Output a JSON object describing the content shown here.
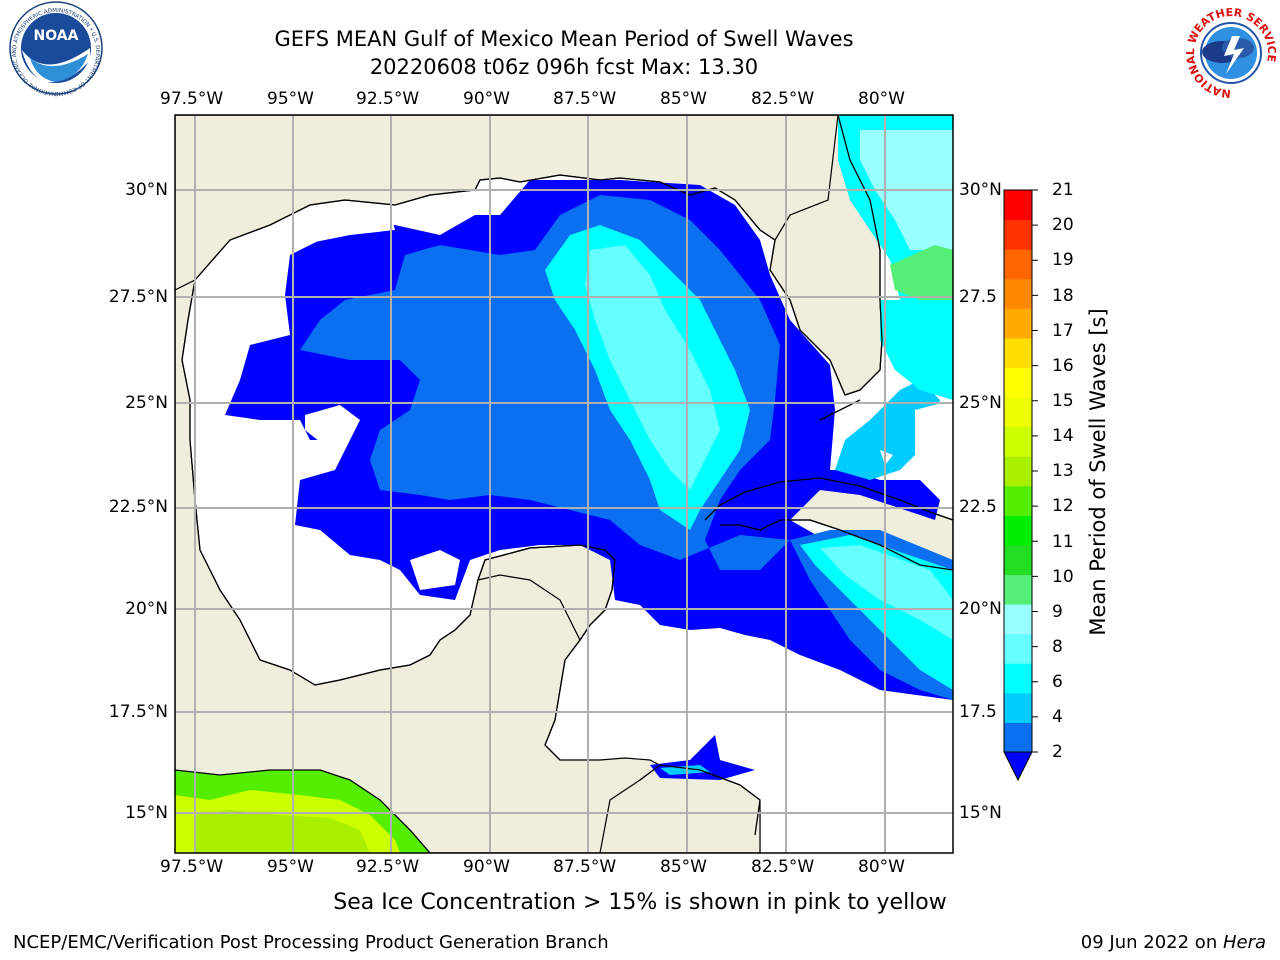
{
  "title": {
    "line1": "GEFS MEAN Gulf of Mexico Mean Period of Swell Waves",
    "line2": "20220608 t06z 096h fcst   Max: 13.30"
  },
  "logos": {
    "left": "noara-logo",
    "left_text": "NATIONAL OCEANIC AND ATMOSPHERIC ADMINISTRATION • U.S. DEPARTMENT OF COMMERCE",
    "left_center": "NOAA",
    "right": "nws-logo",
    "right_text": "NATIONAL WEATHER SERVICE"
  },
  "map": {
    "lon_labels": [
      "97.5°W",
      "95°W",
      "92.5°W",
      "90°W",
      "87.5°W",
      "85°W",
      "82.5°W",
      "80°W"
    ],
    "lat_labels_left": [
      "30°N",
      "27.5°N",
      "25°N",
      "22.5°N",
      "20°N",
      "17.5°N",
      "15°N"
    ],
    "lat_labels_right": [
      "30°N",
      "27.5",
      "25°N",
      "22.5",
      "20°N",
      "17.5",
      "15°N"
    ],
    "lon_range": [
      -98,
      -79
    ],
    "lat_range": [
      14,
      32
    ],
    "colors": {
      "land": "#efeddc",
      "ocean_no_data": "#ffffff",
      "grid": "#b0b0b0",
      "coast": "#000000"
    }
  },
  "colorbar": {
    "title": "Mean Period of Swell Waves [s]",
    "ticks": [
      "21",
      "20",
      "19",
      "18",
      "17",
      "16",
      "15",
      "14",
      "13",
      "12",
      "11",
      "10",
      "9",
      "8",
      "6",
      "4",
      "2"
    ],
    "colors_bottom_to_top": [
      "#0a6ff0",
      "#00ccff",
      "#00ffff",
      "#66ffff",
      "#99ffff",
      "#55ee77",
      "#22dd22",
      "#00ee00",
      "#55ee00",
      "#aaee00",
      "#ccff00",
      "#eeff00",
      "#ffff00",
      "#ffdd00",
      "#ffaa00",
      "#ff8800",
      "#ff6600",
      "#ff3300",
      "#ff0000"
    ],
    "extend_color": "#0000ff"
  },
  "caption": "Sea Ice Concentration > 15% is shown in pink to yellow",
  "credits": {
    "left": "NCEP/EMC/Verification Post Processing Product Generation Branch",
    "right_date": "09 Jun 2022 on ",
    "right_host": "Hera"
  }
}
